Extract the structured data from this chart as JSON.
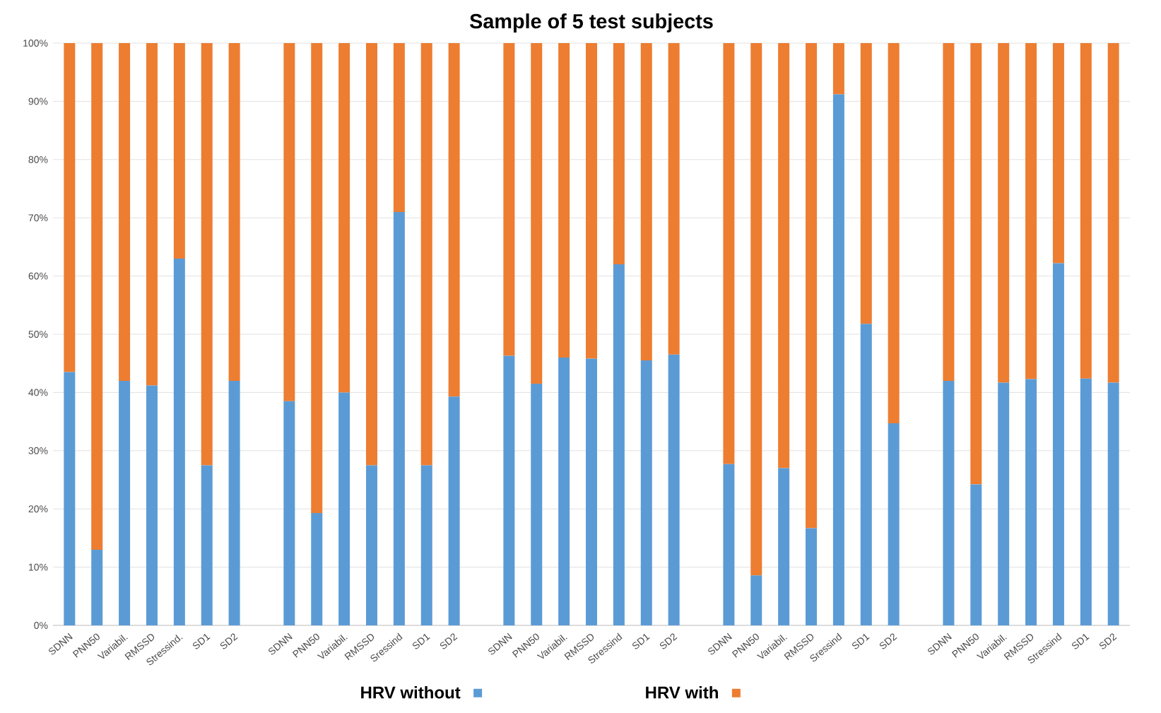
{
  "chart_data": {
    "type": "bar",
    "stacked": true,
    "title": "Sample of 5 test subjects",
    "categories": [
      "SDNN",
      "PNN50",
      "Variabil.",
      "RMSSD",
      "Stressind.",
      "SD1",
      "SD2",
      null,
      "SDNN",
      "PNN50",
      "Variabil.",
      "RMSSD",
      "Sressind",
      "SD1",
      "SD2",
      null,
      "SDNN",
      "PNN50",
      "Variabil.",
      "RMSSD",
      "Stressind",
      "SD1",
      "SD2",
      null,
      "SDNN",
      "PNN50",
      "Variabil.",
      "RMSSD",
      "Sressind",
      "SD1",
      "SD2",
      null,
      "SDNN",
      "PNN50",
      "Variabil.",
      "RMSSD",
      "Stressind",
      "SD1",
      "SD2"
    ],
    "series": [
      {
        "name": "HRV without",
        "color": "#5b9bd5",
        "values": [
          43.5,
          13,
          42,
          41.2,
          63,
          27.5,
          42,
          null,
          38.5,
          19.3,
          40,
          27.5,
          71,
          27.5,
          39.3,
          null,
          46.3,
          41.5,
          46,
          45.8,
          62,
          45.5,
          46.5,
          null,
          27.7,
          8.6,
          27,
          16.7,
          91.2,
          51.8,
          34.7,
          null,
          42,
          24.2,
          41.7,
          42.3,
          62.2,
          42.4,
          41.7
        ]
      },
      {
        "name": "HRV with",
        "color": "#ed7d31",
        "values": [
          56.5,
          87,
          58,
          58.8,
          37,
          72.5,
          58,
          null,
          61.5,
          80.7,
          60,
          72.5,
          29,
          72.5,
          60.7,
          null,
          53.7,
          58.5,
          54,
          54.2,
          38,
          54.5,
          53.5,
          null,
          72.3,
          91.4,
          73,
          83.3,
          8.8,
          48.2,
          65.3,
          null,
          58,
          75.8,
          58.3,
          57.7,
          37.8,
          57.6,
          58.3
        ]
      }
    ],
    "ylim": [
      0,
      100
    ],
    "yticks": [
      {
        "value": 0,
        "label": "0%"
      },
      {
        "value": 10,
        "label": "10%"
      },
      {
        "value": 20,
        "label": "20%"
      },
      {
        "value": 30,
        "label": "30%"
      },
      {
        "value": 40,
        "label": "40%"
      },
      {
        "value": 50,
        "label": "50%"
      },
      {
        "value": 60,
        "label": "60%"
      },
      {
        "value": 70,
        "label": "70%"
      },
      {
        "value": 80,
        "label": "80%"
      },
      {
        "value": 90,
        "label": "90%"
      },
      {
        "value": 100,
        "label": "100%"
      }
    ],
    "grid": "y",
    "legend": "bottom"
  }
}
